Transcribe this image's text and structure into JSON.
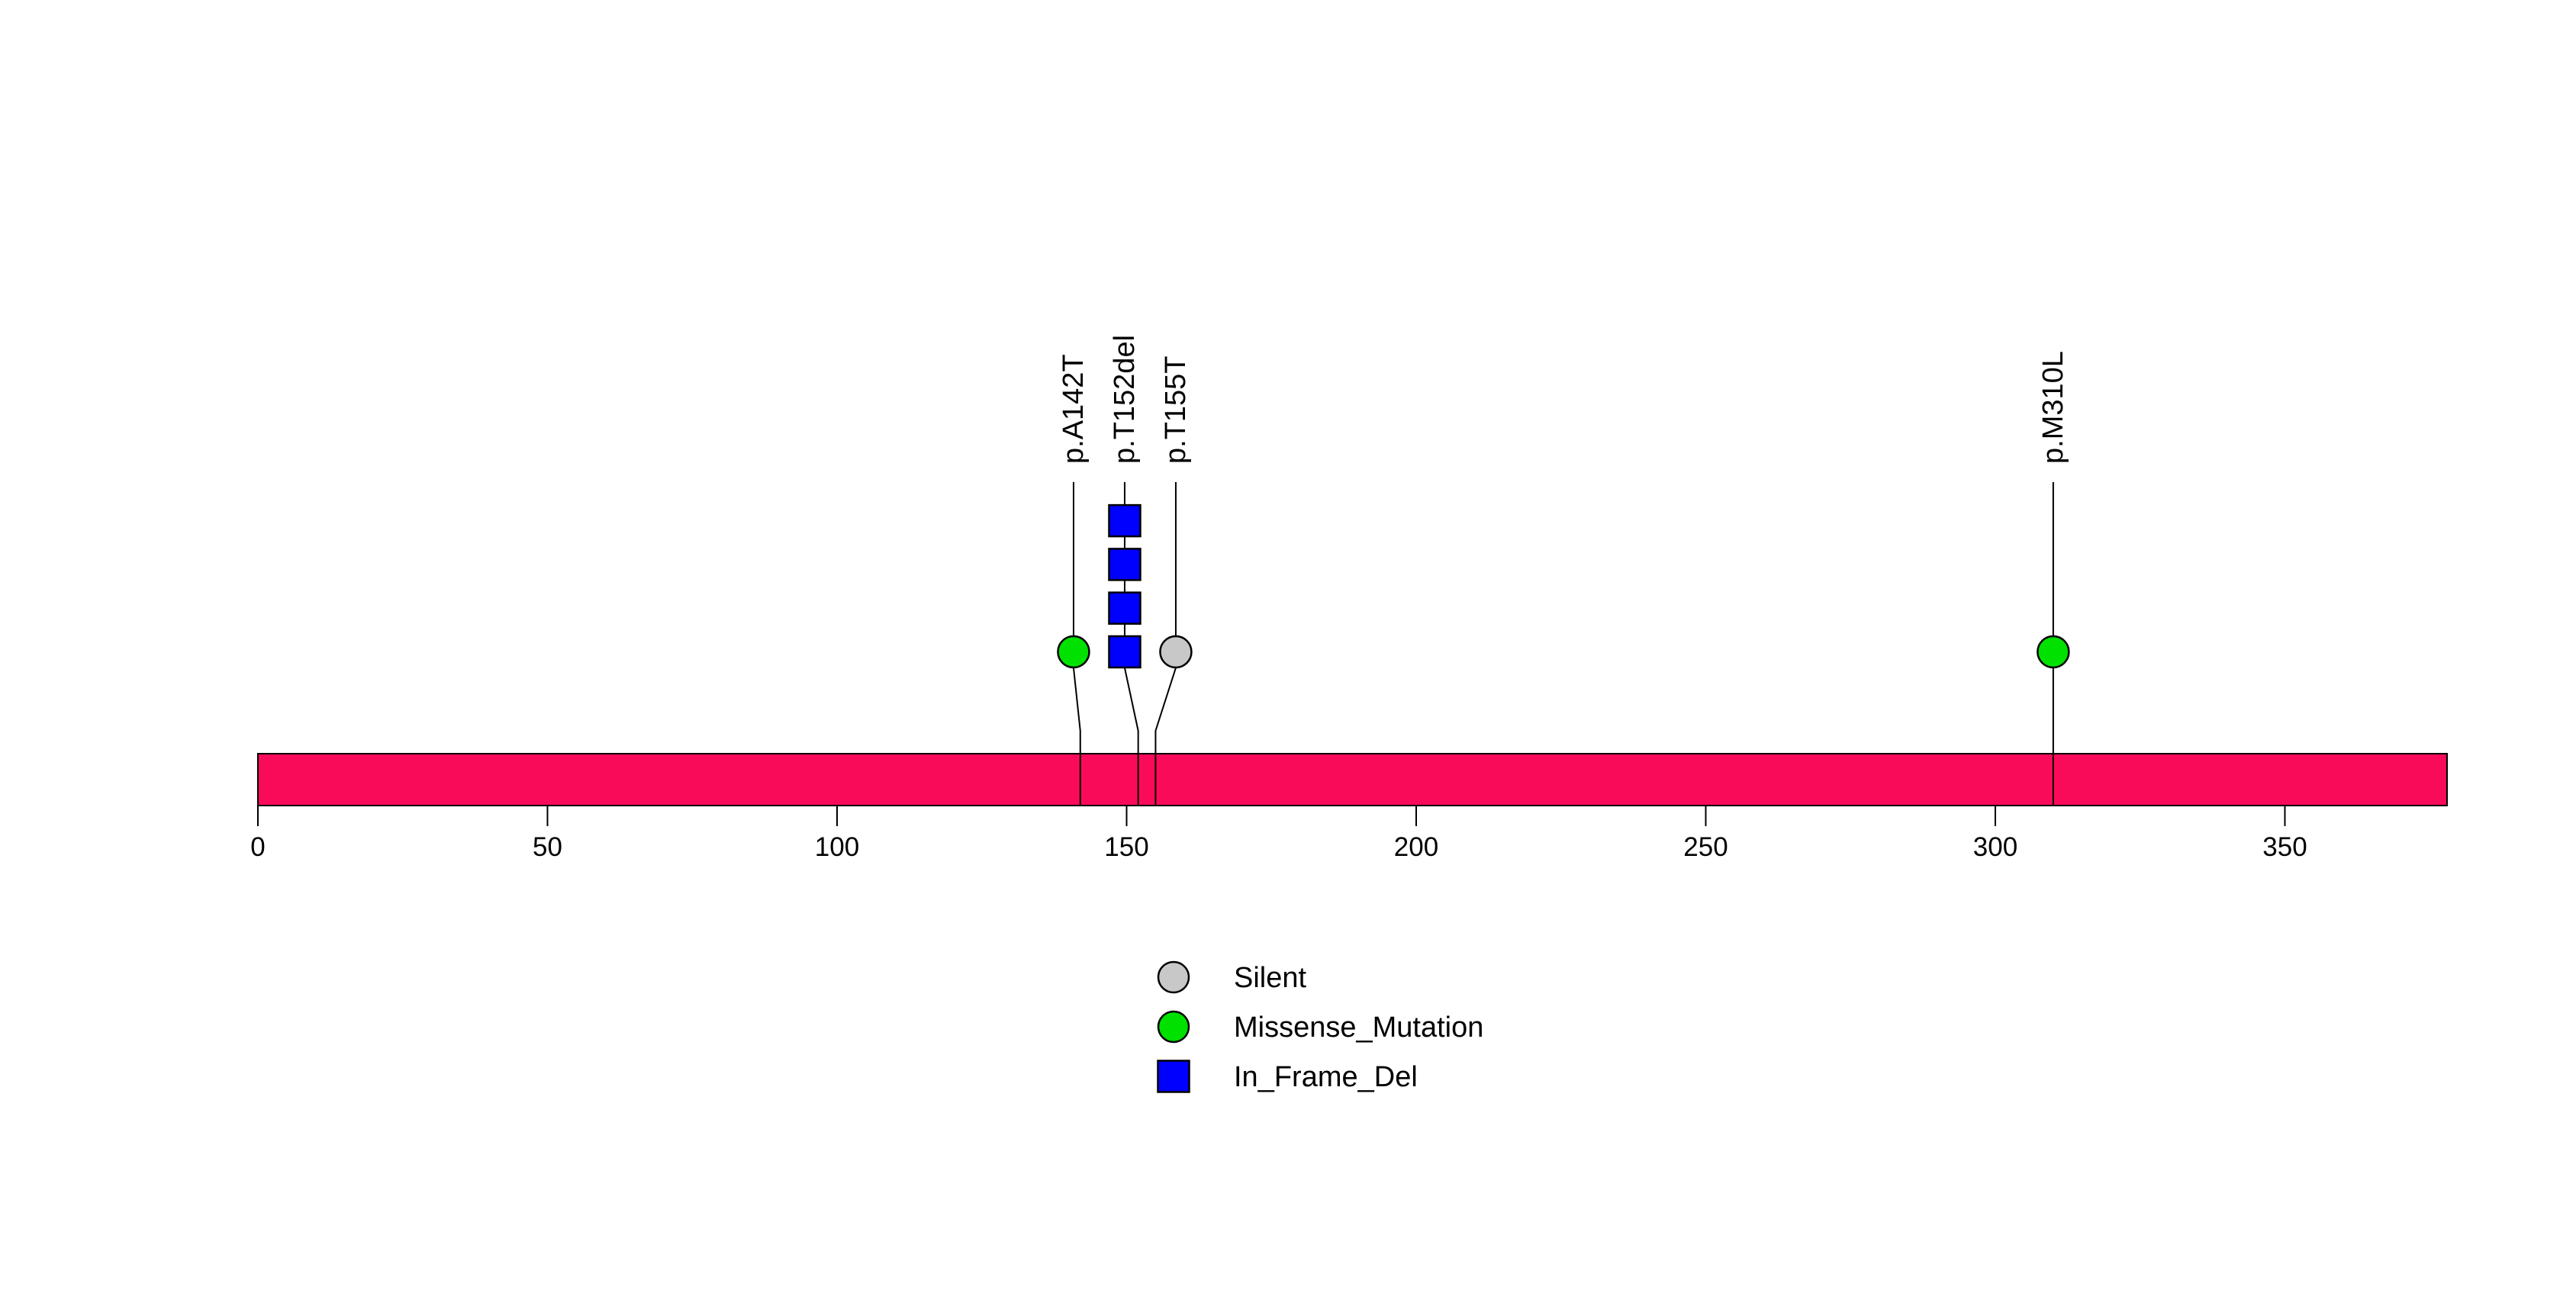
{
  "chart_data": {
    "type": "lollipop",
    "title": "",
    "xlabel": "",
    "ylabel": "",
    "xlim": [
      0,
      378
    ],
    "protein_length": 378,
    "axis_ticks": [
      0,
      50,
      100,
      150,
      200,
      250,
      300,
      350
    ],
    "grid": false,
    "legend_position": "bottom-center",
    "protein_bar": {
      "start": 0,
      "end": 378,
      "color": "#FA0B5A",
      "border_color": "#000000"
    },
    "mutation_types": {
      "Silent": {
        "shape": "circle",
        "color": "#C8C8C8"
      },
      "Missense_Mutation": {
        "shape": "circle",
        "color": "#00E100"
      },
      "In_Frame_Del": {
        "shape": "square",
        "color": "#0000FF"
      }
    },
    "mutations": [
      {
        "label": "p.A142T",
        "position": 142,
        "type": "Missense_Mutation",
        "count": 1
      },
      {
        "label": "p.T152del",
        "position": 152,
        "type": "In_Frame_Del",
        "count": 4
      },
      {
        "label": "p.T155T",
        "position": 155,
        "type": "Silent",
        "count": 1
      },
      {
        "label": "p.M310L",
        "position": 310,
        "type": "Missense_Mutation",
        "count": 1
      }
    ],
    "legend": [
      {
        "label": "Silent",
        "type": "Silent"
      },
      {
        "label": "Missense_Mutation",
        "type": "Missense_Mutation"
      },
      {
        "label": "In_Frame_Del",
        "type": "In_Frame_Del"
      }
    ]
  }
}
